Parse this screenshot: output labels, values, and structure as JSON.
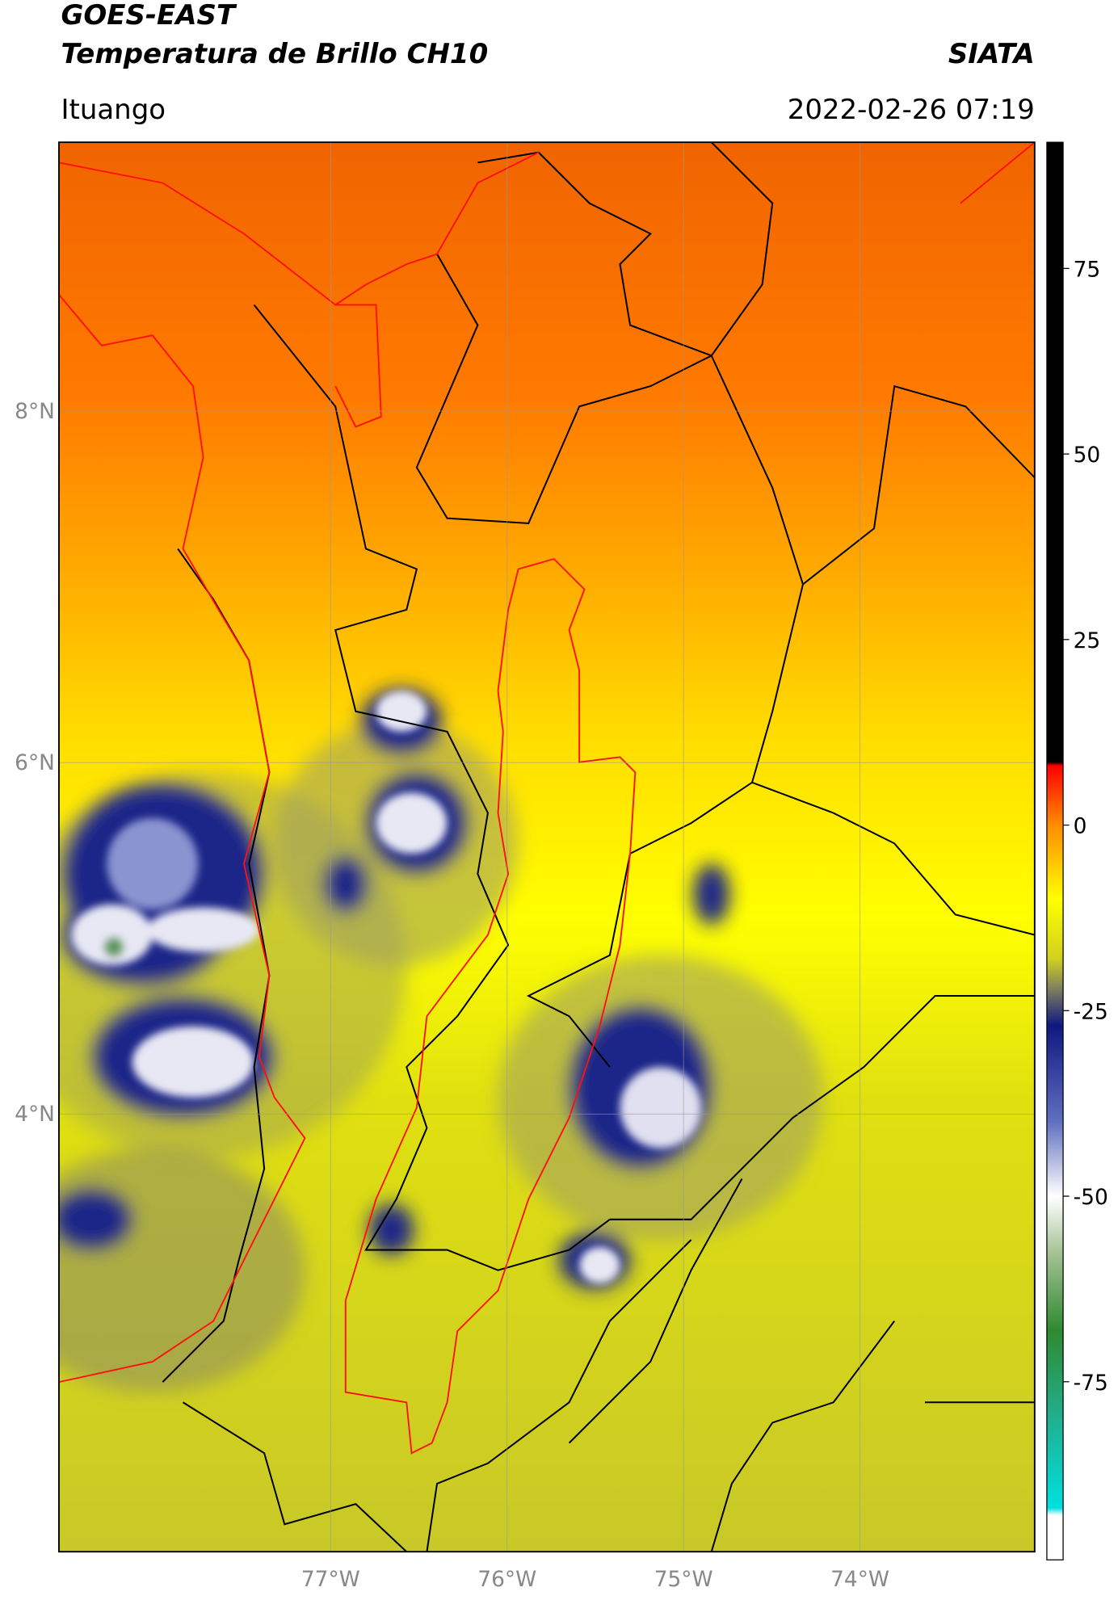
{
  "header": {
    "title": "GOES-EAST",
    "subtitle": "Temperatura de Brillo CH10",
    "brand": "SIATA",
    "location": "Ituango",
    "datetime": "2022-02-26 07:19"
  },
  "map": {
    "xlim": [
      -78.54,
      -73.01
    ],
    "ylim": [
      1.51,
      9.53
    ],
    "xticks": [
      {
        "value": -77,
        "label": "77°W"
      },
      {
        "value": -76,
        "label": "76°W"
      },
      {
        "value": -75,
        "label": "75°W"
      },
      {
        "value": -74,
        "label": "74°W"
      }
    ],
    "yticks": [
      {
        "value": 8,
        "label": "8°N"
      },
      {
        "value": 6,
        "label": "6°N"
      },
      {
        "value": 4,
        "label": "4°N"
      }
    ],
    "grid": true
  },
  "colorbar": {
    "clim": [
      -99,
      92
    ],
    "ticks": [
      75,
      50,
      25,
      0,
      -25,
      -50,
      -75
    ],
    "stops": [
      {
        "value": 92,
        "color": "#000000"
      },
      {
        "value": 8.5,
        "color": "#000000"
      },
      {
        "value": 8,
        "color": "#ff0000"
      },
      {
        "value": 0,
        "color": "#ff8c00"
      },
      {
        "value": -10,
        "color": "#ffff00"
      },
      {
        "value": -18,
        "color": "#d0d020"
      },
      {
        "value": -22,
        "color": "#808060"
      },
      {
        "value": -27,
        "color": "#101880"
      },
      {
        "value": -40,
        "color": "#6070c0"
      },
      {
        "value": -50,
        "color": "#ffffff"
      },
      {
        "value": -58,
        "color": "#a0c090"
      },
      {
        "value": -68,
        "color": "#2f8a30"
      },
      {
        "value": -80,
        "color": "#20b090"
      },
      {
        "value": -92,
        "color": "#00e0e0"
      },
      {
        "value": -93,
        "color": "#ffffff"
      },
      {
        "value": -99,
        "color": "#ffffff"
      }
    ]
  }
}
